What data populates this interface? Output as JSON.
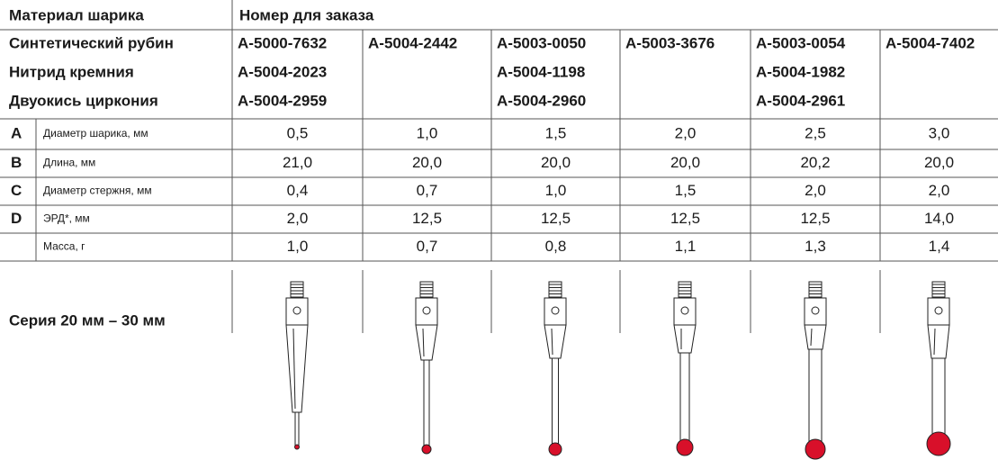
{
  "header": {
    "material": "Материал шарика",
    "order_number": "Номер для заказа"
  },
  "materials": [
    {
      "name": "Синтетический рубин",
      "codes": [
        "A-5000-7632",
        "A-5004-2442",
        "A-5003-0050",
        "A-5003-3676",
        "A-5003-0054",
        "A-5004-7402"
      ]
    },
    {
      "name": "Нитрид кремния",
      "codes": [
        "A-5004-2023",
        null,
        "A-5004-1198",
        null,
        "A-5004-1982",
        null
      ]
    },
    {
      "name": "Двуокись циркония",
      "codes": [
        "A-5004-2959",
        null,
        "A-5004-2960",
        null,
        "A-5004-2961",
        null
      ]
    }
  ],
  "specs": [
    {
      "key": "A",
      "label": "Диаметр шарика, мм",
      "values": [
        "0,5",
        "1,0",
        "1,5",
        "2,0",
        "2,5",
        "3,0"
      ]
    },
    {
      "key": "B",
      "label": "Длина, мм",
      "values": [
        "21,0",
        "20,0",
        "20,0",
        "20,0",
        "20,2",
        "20,0"
      ]
    },
    {
      "key": "C",
      "label": "Диаметр стержня, мм",
      "values": [
        "0,4",
        "0,7",
        "1,0",
        "1,5",
        "2,0",
        "2,0"
      ]
    },
    {
      "key": "D",
      "label": "ЭРД*, мм",
      "values": [
        "2,0",
        "12,5",
        "12,5",
        "12,5",
        "12,5",
        "14,0"
      ]
    },
    {
      "key": null,
      "label": "Масса, г",
      "values": [
        "1,0",
        "0,7",
        "0,8",
        "1,1",
        "1,3",
        "1,4"
      ]
    }
  ],
  "series_label": "Серия 20 мм – 30 мм"
}
